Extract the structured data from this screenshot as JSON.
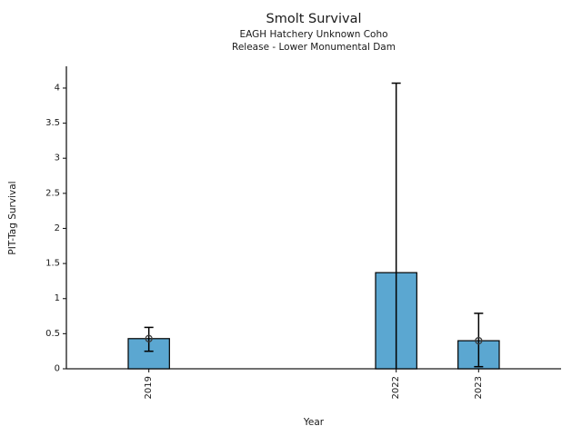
{
  "chart_data": {
    "type": "bar",
    "title": "Smolt Survival",
    "subtitle": [
      "EAGH Hatchery Unknown Coho",
      "Release - Lower Monumental Dam"
    ],
    "xlabel": "Year",
    "ylabel": "PIT-Tag Survival",
    "categories": [
      2019,
      2022,
      2023
    ],
    "xtick_labels": [
      "2019",
      "2022",
      "2023"
    ],
    "values": [
      0.43,
      1.37,
      0.4
    ],
    "error_low": [
      0.25,
      0.0,
      0.03
    ],
    "error_high": [
      0.59,
      4.07,
      0.79
    ],
    "point_markers": [
      0.43,
      null,
      0.4
    ],
    "ytick_values": [
      0,
      0.5,
      1,
      1.5,
      2,
      2.5,
      3,
      3.5,
      4
    ],
    "ytick_labels": [
      "0",
      "0.5",
      "1",
      "1.5",
      "2",
      "2.5",
      "3",
      "3.5",
      "4"
    ],
    "xlim": [
      2018,
      2024
    ],
    "ylim": [
      0,
      4.31
    ],
    "bar_width_years": 0.5,
    "grid": false,
    "legend": null,
    "colors": {
      "bar_fill": "#5BA7D1",
      "bar_edge": "#000000",
      "error_bar": "#000000",
      "marker_edge": "#3b3b3b",
      "axis": "#1a1a1a"
    }
  }
}
